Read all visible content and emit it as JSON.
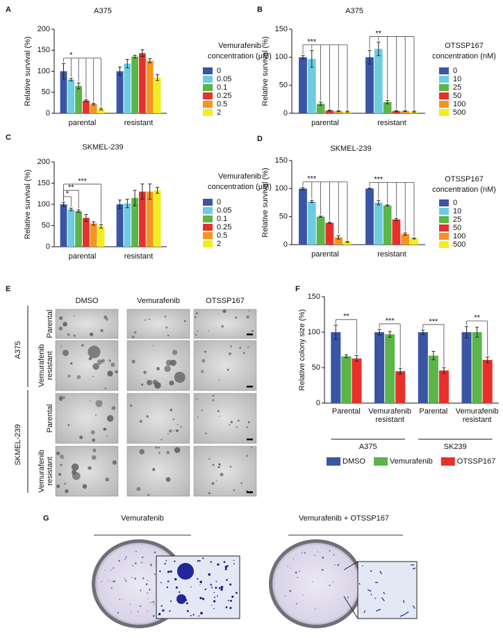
{
  "chart_data": [
    {
      "type": "bar",
      "label": "A",
      "title": "A375",
      "y_label": "Relative survival (%)",
      "legend_title": [
        "Vemurafenib",
        "concentration (μM)"
      ],
      "categories": [
        "parental",
        "resistant"
      ],
      "series": [
        {
          "name": "0",
          "color": "#3a55a4",
          "values": [
            100,
            100
          ],
          "errors": [
            18,
            10
          ]
        },
        {
          "name": "0.05",
          "color": "#6ecce0",
          "values": [
            80,
            118
          ],
          "errors": [
            3,
            10
          ]
        },
        {
          "name": "0.1",
          "color": "#5bb547",
          "values": [
            65,
            135
          ],
          "errors": [
            7,
            3
          ]
        },
        {
          "name": "0.25",
          "color": "#e8302b",
          "values": [
            30,
            143
          ],
          "errors": [
            2,
            8
          ]
        },
        {
          "name": "0.5",
          "color": "#f7941d",
          "values": [
            22,
            125
          ],
          "errors": [
            2,
            5
          ]
        },
        {
          "name": "2",
          "color": "#f5ec1b",
          "values": [
            10,
            85
          ],
          "errors": [
            2,
            7
          ]
        }
      ],
      "ylim": [
        0,
        200
      ],
      "yticks": [
        0,
        50,
        100,
        150,
        200
      ],
      "annotations": [
        "*"
      ]
    },
    {
      "type": "bar",
      "label": "B",
      "title": "A375",
      "y_label": "Relative survival (%)",
      "legend_title": [
        "OTSSP167",
        "concentration (nM)"
      ],
      "categories": [
        "parental",
        "resistant"
      ],
      "series": [
        {
          "name": "0",
          "color": "#3a55a4",
          "values": [
            100,
            100
          ],
          "errors": [
            3,
            12
          ]
        },
        {
          "name": "10",
          "color": "#6ecce0",
          "values": [
            97,
            115
          ],
          "errors": [
            15,
            12
          ]
        },
        {
          "name": "25",
          "color": "#5bb547",
          "values": [
            17,
            20
          ],
          "errors": [
            3,
            3
          ]
        },
        {
          "name": "50",
          "color": "#e8302b",
          "values": [
            5,
            4
          ],
          "errors": [
            1,
            1
          ]
        },
        {
          "name": "100",
          "color": "#f7941d",
          "values": [
            4,
            4
          ],
          "errors": [
            1,
            1
          ]
        },
        {
          "name": "500",
          "color": "#f5ec1b",
          "values": [
            3,
            3
          ],
          "errors": [
            1,
            1
          ]
        }
      ],
      "ylim": [
        0,
        150
      ],
      "yticks": [
        0,
        50,
        100,
        150
      ],
      "annotations": [
        "***",
        "**"
      ]
    },
    {
      "type": "bar",
      "label": "C",
      "title": "SKMEL-239",
      "y_label": "Relative survival (%)",
      "legend_title": [
        "Vemurafenib",
        "concentration (μM)"
      ],
      "categories": [
        "parental",
        "resistant"
      ],
      "series": [
        {
          "name": "0",
          "color": "#3a55a4",
          "values": [
            100,
            100
          ],
          "errors": [
            5,
            10
          ]
        },
        {
          "name": "0.05",
          "color": "#6ecce0",
          "values": [
            88,
            102
          ],
          "errors": [
            3,
            10
          ]
        },
        {
          "name": "0.1",
          "color": "#5bb547",
          "values": [
            84,
            115
          ],
          "errors": [
            3,
            18
          ]
        },
        {
          "name": "0.25",
          "color": "#e8302b",
          "values": [
            68,
            130
          ],
          "errors": [
            8,
            18
          ]
        },
        {
          "name": "0.5",
          "color": "#f7941d",
          "values": [
            55,
            130
          ],
          "errors": [
            4,
            18
          ]
        },
        {
          "name": "2",
          "color": "#f5ec1b",
          "values": [
            48,
            133
          ],
          "errors": [
            4,
            7
          ]
        }
      ],
      "ylim": [
        0,
        200
      ],
      "yticks": [
        0,
        50,
        100,
        150,
        200
      ],
      "annotations": [
        "*",
        "**",
        "***"
      ]
    },
    {
      "type": "bar",
      "label": "D",
      "title": "SKMEL-239",
      "y_label": "Relative survival (%)",
      "legend_title": [
        "OTSSP167",
        "concentration (nM)"
      ],
      "categories": [
        "parental",
        "resistant"
      ],
      "series": [
        {
          "name": "0",
          "color": "#3a55a4",
          "values": [
            100,
            100
          ],
          "errors": [
            2,
            1
          ]
        },
        {
          "name": "10",
          "color": "#6ecce0",
          "values": [
            77,
            75
          ],
          "errors": [
            2,
            4
          ]
        },
        {
          "name": "25",
          "color": "#5bb547",
          "values": [
            50,
            70
          ],
          "errors": [
            1,
            1
          ]
        },
        {
          "name": "50",
          "color": "#e8302b",
          "values": [
            39,
            45
          ],
          "errors": [
            1,
            2
          ]
        },
        {
          "name": "100",
          "color": "#f7941d",
          "values": [
            13,
            19
          ],
          "errors": [
            3,
            2
          ]
        },
        {
          "name": "500",
          "color": "#f5ec1b",
          "values": [
            5,
            11
          ],
          "errors": [
            1,
            1
          ]
        }
      ],
      "ylim": [
        0,
        150
      ],
      "yticks": [
        0,
        50,
        100,
        150
      ],
      "annotations": [
        "***",
        "***"
      ]
    },
    {
      "type": "bar",
      "label": "F",
      "y_label": "Relative colony size (%)",
      "categories": [
        "Parental",
        "Vemurafenib resistant",
        "Parental",
        "Vemurafenib resistant"
      ],
      "group_labels": [
        "A375",
        "SK239"
      ],
      "series": [
        {
          "name": "DMSO",
          "color": "#3a55a4",
          "values": [
            100,
            100,
            100,
            100
          ],
          "errors": [
            10,
            4,
            3,
            8
          ]
        },
        {
          "name": "Vemurafenib",
          "color": "#5bb547",
          "values": [
            66,
            97,
            67,
            100
          ],
          "errors": [
            2,
            4,
            6,
            7
          ]
        },
        {
          "name": "OTSSP167",
          "color": "#e8302b",
          "values": [
            63,
            45,
            46,
            61
          ],
          "errors": [
            4,
            4,
            4,
            4
          ]
        }
      ],
      "ylim": [
        0,
        150
      ],
      "yticks": [
        0,
        50,
        100,
        150
      ],
      "annotations": [
        "**",
        "***",
        "***",
        "**"
      ]
    }
  ],
  "panel_e": {
    "label": "E",
    "columns": [
      "DMSO",
      "Vemurafenib",
      "OTSSP167"
    ],
    "groups": [
      {
        "name": "A375",
        "rows": [
          [
            "Parental"
          ],
          [
            "Vemurafenib",
            "resistant"
          ]
        ]
      },
      {
        "name": "SKMEL-239",
        "rows": [
          [
            "Parental"
          ],
          [
            "Vemurafenib",
            "resistant"
          ]
        ]
      }
    ]
  },
  "panel_g": {
    "label": "G",
    "dishes": [
      "Vemurafenib",
      "Vemurafenib + OTSSP167"
    ]
  }
}
